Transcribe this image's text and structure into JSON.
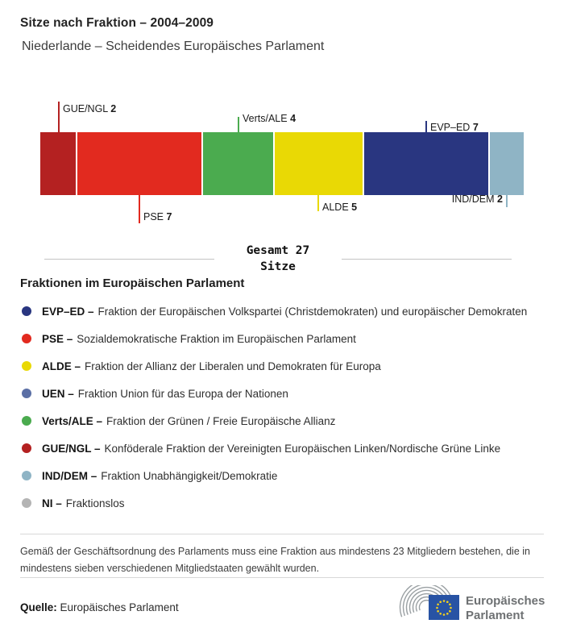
{
  "header": {
    "title": "Sitze nach Fraktion – 2004–2009",
    "subtitle": "Niederlande – Scheidendes Europäisches Parlament"
  },
  "chart_data": {
    "type": "bar",
    "variant": "horizontal-stacked",
    "title": "Sitze nach Fraktion – 2004–2009",
    "total_seats": 27,
    "categories": [
      "GUE/NGL",
      "PSE",
      "Verts/ALE",
      "ALDE",
      "EVP–ED",
      "IND/DEM"
    ],
    "values": [
      2,
      7,
      4,
      5,
      7,
      2
    ],
    "segments": [
      {
        "name": "GUE/NGL",
        "seats": 2,
        "color": "#b42121",
        "label_position": "top"
      },
      {
        "name": "PSE",
        "seats": 7,
        "color": "#e22a1f",
        "label_position": "bottom"
      },
      {
        "name": "Verts/ALE",
        "seats": 4,
        "color": "#4bab4f",
        "label_position": "top"
      },
      {
        "name": "ALDE",
        "seats": 5,
        "color": "#e9d905",
        "label_position": "bottom"
      },
      {
        "name": "EVP–ED",
        "seats": 7,
        "color": "#293680",
        "label_position": "top"
      },
      {
        "name": "IND/DEM",
        "seats": 2,
        "color": "#8fb4c5",
        "label_position": "bottom"
      }
    ]
  },
  "total": {
    "line1": "Gesamt 27",
    "line2": "Sitze"
  },
  "legend": {
    "heading": "Fraktionen im Europäischen Parlament",
    "items": [
      {
        "label": "EVP–ED –",
        "desc": "Fraktion der Europäischen Volkspartei (Christdemokraten) und europäischer Demokraten",
        "color": "#293680"
      },
      {
        "label": "PSE –",
        "desc": "Sozialdemokratische Fraktion im Europäischen Parlament",
        "color": "#e22a1f"
      },
      {
        "label": "ALDE –",
        "desc": "Fraktion der Allianz der Liberalen und Demokraten für Europa",
        "color": "#e9d905"
      },
      {
        "label": "UEN –",
        "desc": "Fraktion Union für das Europa der Nationen",
        "color": "#5b6fa5"
      },
      {
        "label": "Verts/ALE –",
        "desc": "Fraktion der Grünen / Freie Europäische Allianz",
        "color": "#4bab4f"
      },
      {
        "label": "GUE/NGL –",
        "desc": "Konföderale Fraktion der Vereinigten Europäischen Linken/Nordische Grüne Linke",
        "color": "#b42121"
      },
      {
        "label": "IND/DEM –",
        "desc": "Fraktion Unabhängigkeit/Demokratie",
        "color": "#8fb4c5"
      },
      {
        "label": "NI –",
        "desc": "Fraktionslos",
        "color": "#b4b4b4"
      }
    ]
  },
  "footnote": "Gemäß der Geschäftsordnung des Parlaments muss eine Fraktion aus mindestens 23 Mitgliedern bestehen, die in mindestens sieben verschiedenen Mitgliedstaaten gewählt wurden.",
  "source": {
    "label": "Quelle:",
    "value": "Europäisches Parlament"
  },
  "logo": {
    "line1": "Europäisches",
    "line2": "Parlament"
  }
}
